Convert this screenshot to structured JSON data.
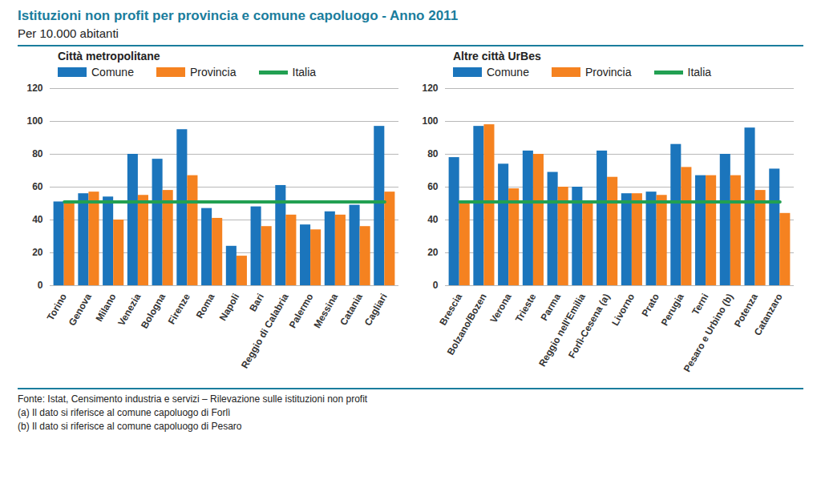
{
  "title": "Istituzioni non profit per provincia e comune capoluogo - Anno 2011",
  "subtitle": "Per 10.000 abitanti",
  "source": "Fonte: Istat, Censimento industria e servizi – Rilevazione sulle istituzioni non profit",
  "notes": [
    "(a) Il dato si riferisce al comune capoluogo di Forlì",
    "(b) Il dato si riferisce al comune capoluogo di Pesaro"
  ],
  "chart_data": [
    {
      "type": "bar",
      "title": "Città metropolitane",
      "categories": [
        "Torino",
        "Genova",
        "Milano",
        "Venezia",
        "Bologna",
        "Firenze",
        "Roma",
        "Napoli",
        "Bari",
        "Reggio di Calabria",
        "Palermo",
        "Messina",
        "Catania",
        "Cagliari"
      ],
      "series": [
        {
          "name": "Comune",
          "type": "bar",
          "color": "#1b75bc",
          "values": [
            51,
            56,
            54,
            80,
            77,
            95,
            47,
            24,
            48,
            61,
            37,
            45,
            49,
            97
          ]
        },
        {
          "name": "Provincia",
          "type": "bar",
          "color": "#f58220",
          "values": [
            50,
            57,
            40,
            55,
            58,
            67,
            41,
            18,
            36,
            43,
            34,
            43,
            36,
            57
          ]
        },
        {
          "name": "Italia",
          "type": "line",
          "color": "#22a052",
          "values": [
            51,
            51,
            51,
            51,
            51,
            51,
            51,
            51,
            51,
            51,
            51,
            51,
            51,
            51
          ]
        }
      ],
      "ylim": [
        0,
        120
      ],
      "yticks": [
        0,
        20,
        40,
        60,
        80,
        100,
        120
      ],
      "grid": true
    },
    {
      "type": "bar",
      "title": "Altre città UrBes",
      "categories": [
        "Brescia",
        "Bolzano/Bozen",
        "Verona",
        "Trieste",
        "Parma",
        "Reggio nell'Emilia",
        "Forlì-Cesena (a)",
        "Livorno",
        "Prato",
        "Perugia",
        "Terni",
        "Pesaro e Urbino (b)",
        "Potenza",
        "Catanzaro"
      ],
      "series": [
        {
          "name": "Comune",
          "type": "bar",
          "color": "#1b75bc",
          "values": [
            78,
            97,
            74,
            82,
            69,
            60,
            82,
            56,
            57,
            86,
            67,
            80,
            96,
            71
          ]
        },
        {
          "name": "Provincia",
          "type": "bar",
          "color": "#f58220",
          "values": [
            50,
            98,
            59,
            80,
            60,
            50,
            66,
            56,
            55,
            72,
            67,
            67,
            58,
            44
          ]
        },
        {
          "name": "Italia",
          "type": "line",
          "color": "#22a052",
          "values": [
            51,
            51,
            51,
            51,
            51,
            51,
            51,
            51,
            51,
            51,
            51,
            51,
            51,
            51
          ]
        }
      ],
      "ylim": [
        0,
        120
      ],
      "yticks": [
        0,
        20,
        40,
        60,
        80,
        100,
        120
      ],
      "grid": true
    }
  ]
}
